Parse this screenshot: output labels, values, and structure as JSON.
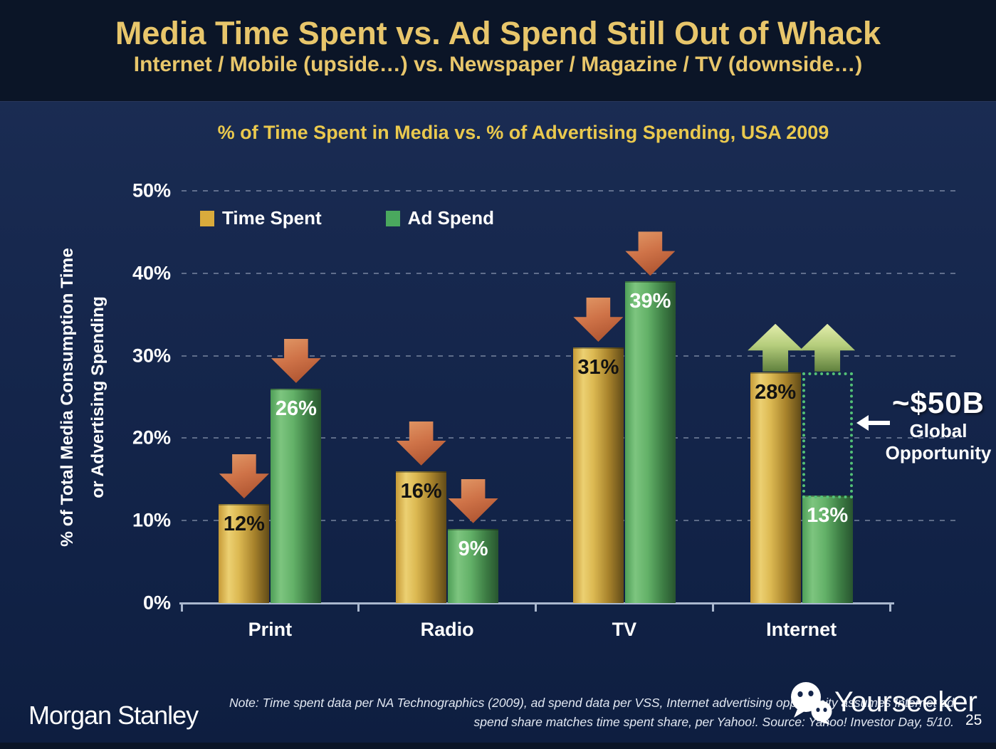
{
  "slide": {
    "title": "Media Time Spent vs. Ad Spend Still Out of Whack",
    "subtitle": "Internet / Mobile (upside…) vs. Newspaper / Magazine / TV (downside…)"
  },
  "chart_data": {
    "type": "bar",
    "title": "% of Time Spent in Media vs. % of Advertising Spending, USA 2009",
    "categories": [
      "Print",
      "Radio",
      "TV",
      "Internet"
    ],
    "series": [
      {
        "name": "Time Spent",
        "color": "#d9ab3c",
        "values": [
          12,
          16,
          31,
          28
        ],
        "labels": [
          "12%",
          "16%",
          "31%",
          "28%"
        ]
      },
      {
        "name": "Ad Spend",
        "color": "#4aa85e",
        "values": [
          26,
          9,
          39,
          13
        ],
        "labels": [
          "26%",
          "9%",
          "39%",
          "13%"
        ]
      }
    ],
    "ylabel_line1": "% of Total Media Consumption Time",
    "ylabel_line2": "or Advertising Spending",
    "ylim": [
      0,
      50
    ],
    "yticks": [
      "0%",
      "10%",
      "20%",
      "30%",
      "40%",
      "50%"
    ],
    "grid": "horizontal-dashed",
    "legend_position": "top-left inside plot",
    "trends": [
      "down",
      "down",
      "down",
      "up"
    ],
    "trend_colors": {
      "down": "#c4663f",
      "up": "#b5cd7c"
    },
    "annotation": {
      "headline": "~$50B",
      "line2": "Global",
      "line3": "Opportunity",
      "category": "Internet",
      "series": "Ad Spend",
      "from_value": 13,
      "to_value": 28,
      "style": "green dotted rectangle with white left arrow"
    }
  },
  "footer": {
    "brand": "Morgan Stanley",
    "note_line1": "Note: Time spent data per NA Technographics (2009), ad spend data per VSS, Internet advertising opportunity assumes Internet ad",
    "note_line2": "spend share matches time spent share, per Yahoo!. Source: Yahoo! Investor Day, 5/10.",
    "watermark": "Yourseeker",
    "page_number": "25"
  }
}
